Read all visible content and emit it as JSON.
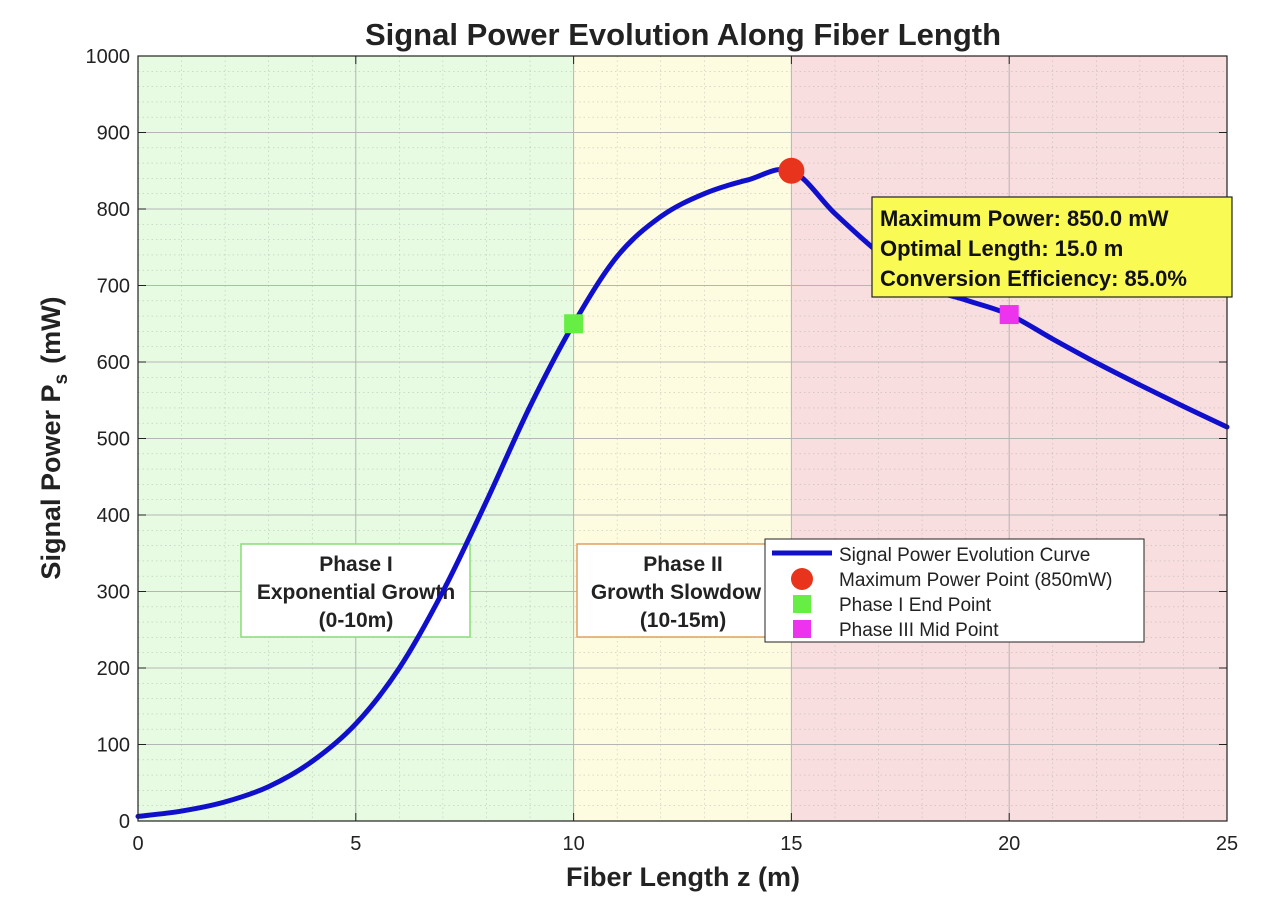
{
  "chart_data": {
    "type": "line",
    "title": "Signal Power Evolution Along Fiber Length",
    "xlabel": "Fiber Length z (m)",
    "ylabel_main": "Signal  Power  P",
    "ylabel_sub": "s",
    "ylabel_unit": "(mW)",
    "xlim": [
      0,
      25
    ],
    "ylim": [
      0,
      1000
    ],
    "xticks": [
      "0",
      "5",
      "10",
      "15",
      "20",
      "25"
    ],
    "yticks": [
      "0",
      "100",
      "200",
      "300",
      "400",
      "500",
      "600",
      "700",
      "800",
      "900",
      "1000"
    ],
    "grid": true,
    "minor_grid": true,
    "legend_position": "right-center",
    "series": [
      {
        "name": "Signal Power Evolution Curve",
        "color": "#1010cc",
        "x": [
          0,
          1,
          2,
          3,
          4,
          5,
          6,
          7,
          8,
          9,
          10,
          11,
          12,
          13,
          14,
          15,
          16,
          17,
          18,
          19,
          20,
          21,
          22,
          23,
          24,
          25
        ],
        "y": [
          6,
          13,
          25,
          45,
          78,
          127,
          200,
          300,
          418,
          542,
          650,
          738,
          790,
          820,
          838,
          850,
          794,
          743,
          700,
          681,
          662,
          630,
          599,
          570,
          542,
          515
        ]
      }
    ],
    "markers": [
      {
        "name": "Maximum Power Point (850mW)",
        "shape": "circle",
        "color": "#e8341c",
        "x": 15,
        "y": 850
      },
      {
        "name": "Phase I End Point",
        "shape": "square",
        "color": "#66ee44",
        "x": 10,
        "y": 650
      },
      {
        "name": "Phase III Mid Point",
        "shape": "square",
        "color": "#ee33ee",
        "x": 20,
        "y": 662
      }
    ],
    "regions": [
      {
        "from": 0,
        "to": 10,
        "color": "#e6fbe2"
      },
      {
        "from": 10,
        "to": 15,
        "color": "#fdfbe0"
      },
      {
        "from": 15,
        "to": 25,
        "color": "#f8dede"
      }
    ],
    "phase_labels": [
      {
        "lines": [
          "Phase I",
          "Exponential Growth",
          "(0-10m)"
        ],
        "border": "#88dd77"
      },
      {
        "lines": [
          "Phase II",
          "Growth Slowdow",
          "(10-15m)"
        ],
        "border": "#e0a060"
      }
    ],
    "annotation": {
      "lines": [
        "Maximum Power: 850.0 mW",
        "Optimal Length: 15.0 m",
        "Conversion Efficiency: 85.0%"
      ],
      "background": "#fafa55"
    }
  }
}
